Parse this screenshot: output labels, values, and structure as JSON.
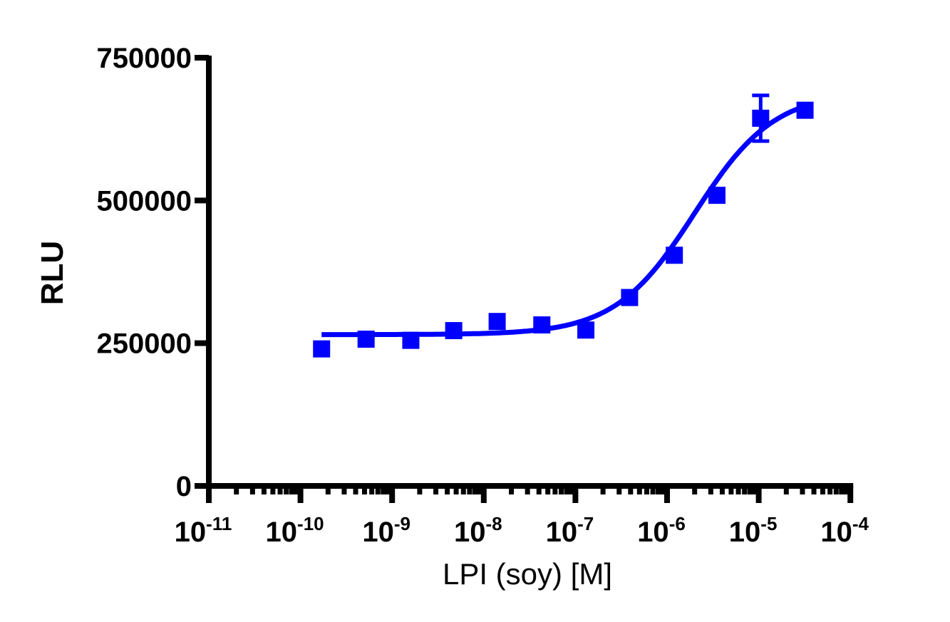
{
  "chart_data": {
    "type": "scatter",
    "title": "",
    "xlabel": "LPI (soy) [M]",
    "ylabel": "RLU",
    "xscale": "log",
    "xlim": [
      1e-11,
      0.0001
    ],
    "ylim": [
      0,
      750000
    ],
    "grid": false,
    "legend": null,
    "x_ticks": [
      {
        "base": "10",
        "exp": "-11",
        "value": 1e-11
      },
      {
        "base": "10",
        "exp": "-10",
        "value": 1e-10
      },
      {
        "base": "10",
        "exp": "-9",
        "value": 1e-09
      },
      {
        "base": "10",
        "exp": "-8",
        "value": 1e-08
      },
      {
        "base": "10",
        "exp": "-7",
        "value": 1e-07
      },
      {
        "base": "10",
        "exp": "-6",
        "value": 1e-06
      },
      {
        "base": "10",
        "exp": "-5",
        "value": 1e-05
      },
      {
        "base": "10",
        "exp": "-4",
        "value": 0.0001
      }
    ],
    "y_ticks": [
      "0",
      "250000",
      "500000",
      "750000"
    ],
    "y_tick_values": [
      0,
      250000,
      500000,
      750000
    ],
    "series": [
      {
        "name": "LPI (soy)",
        "color": "#0000ff",
        "marker": "square",
        "x": [
          1.7e-10,
          5.2e-10,
          1.6e-09,
          4.7e-09,
          1.4e-08,
          4.3e-08,
          1.3e-07,
          3.9e-07,
          1.2e-06,
          3.5e-06,
          1.05e-05,
          3.2e-05
        ],
        "y": [
          240000,
          257000,
          255000,
          272000,
          288000,
          282000,
          273000,
          330000,
          404000,
          509000,
          644000,
          658000
        ],
        "error": [
          0,
          0,
          0,
          0,
          0,
          0,
          0,
          0,
          0,
          0,
          40000,
          0
        ]
      }
    ],
    "fit": {
      "type": "sigmoidal dose-response",
      "color": "#0000ff",
      "bottom": 265000,
      "top": 690000,
      "logEC50": -5.7,
      "hill": 1.0,
      "x_range": [
        1.7e-10,
        3.2e-05
      ]
    }
  }
}
